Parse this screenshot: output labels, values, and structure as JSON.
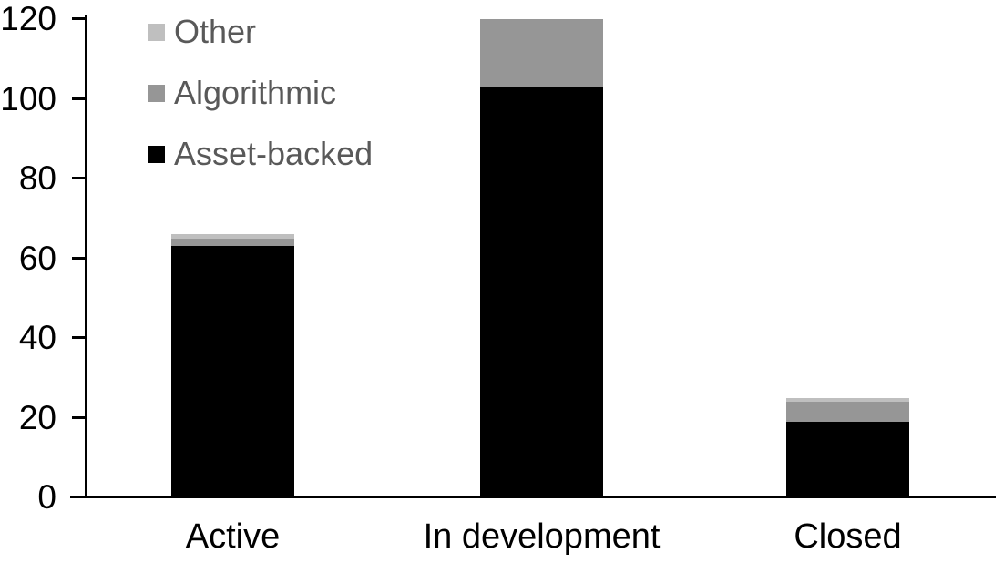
{
  "chart_data": {
    "type": "bar",
    "stacked": true,
    "title": "",
    "xlabel": "",
    "ylabel": "",
    "categories": [
      "Active",
      "In development",
      "Closed"
    ],
    "series": [
      {
        "name": "Asset-backed",
        "color": "#000000",
        "values": [
          63,
          103,
          19
        ]
      },
      {
        "name": "Algorithmic",
        "color": "#969696",
        "values": [
          2,
          17,
          5
        ]
      },
      {
        "name": "Other",
        "color": "#bfbfbf",
        "values": [
          1,
          0,
          1
        ]
      }
    ],
    "stack_order_bottom_to_top": [
      "Asset-backed",
      "Algorithmic",
      "Other"
    ],
    "category_totals": [
      66,
      120,
      25
    ],
    "ylim": [
      0,
      120
    ],
    "yticks": [
      0,
      20,
      40,
      60,
      80,
      100,
      120
    ],
    "grid": false,
    "legend_position": "top-left-inside",
    "legend_order_top_to_bottom": [
      "Other",
      "Algorithmic",
      "Asset-backed"
    ],
    "axis_color": "#000000",
    "legend_text_color": "#595959",
    "background_color": "#ffffff"
  }
}
